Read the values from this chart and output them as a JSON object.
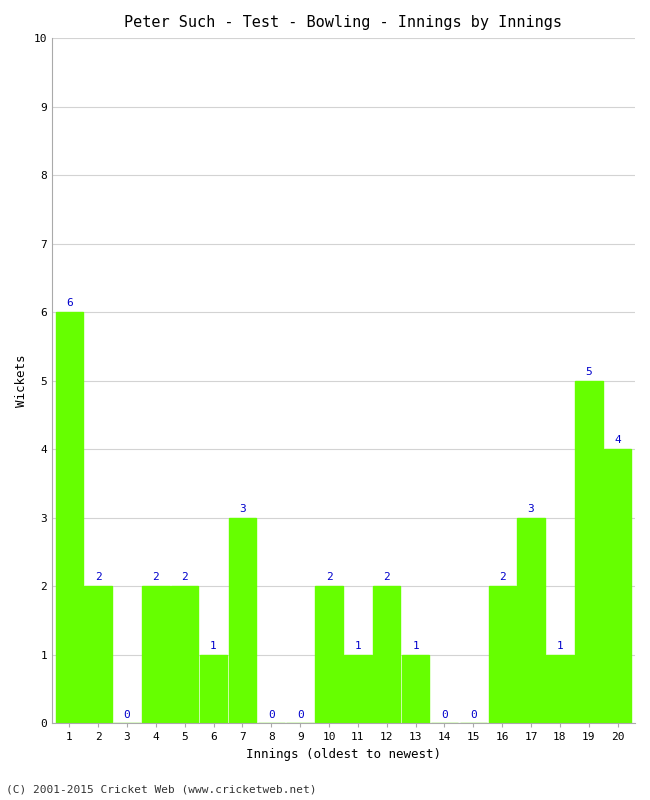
{
  "title": "Peter Such - Test - Bowling - Innings by Innings",
  "xlabel": "Innings (oldest to newest)",
  "ylabel": "Wickets",
  "innings": [
    1,
    2,
    3,
    4,
    5,
    6,
    7,
    8,
    9,
    10,
    11,
    12,
    13,
    14,
    15,
    16,
    17,
    18,
    19,
    20
  ],
  "wickets": [
    6,
    2,
    0,
    2,
    2,
    1,
    3,
    0,
    0,
    2,
    1,
    2,
    1,
    0,
    0,
    2,
    3,
    1,
    5,
    4
  ],
  "bar_color": "#66ff00",
  "label_color": "#0000cc",
  "ylim": [
    0,
    10
  ],
  "yticks": [
    0,
    1,
    2,
    3,
    4,
    5,
    6,
    7,
    8,
    9,
    10
  ],
  "background_color": "#ffffff",
  "grid_color": "#d3d3d3",
  "footer": "(C) 2001-2015 Cricket Web (www.cricketweb.net)",
  "title_fontsize": 11,
  "label_fontsize": 9,
  "tick_fontsize": 8,
  "footer_fontsize": 8,
  "bar_width": 0.95
}
